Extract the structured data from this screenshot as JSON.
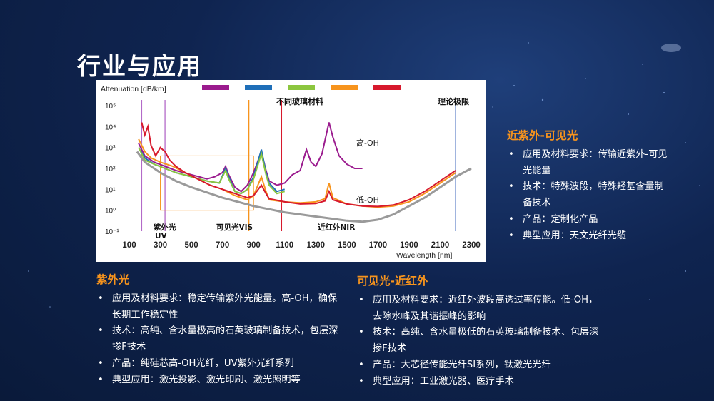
{
  "page": {
    "title": "行业与应用"
  },
  "chart_data": {
    "type": "line",
    "ylabel": "Attenuation [dB/km]",
    "xlabel": "Wavelength [nm]",
    "x_ticks": [
      100,
      300,
      500,
      700,
      900,
      1100,
      1300,
      1500,
      1700,
      1900,
      2100,
      2300
    ],
    "y_ticks": [
      "10⁻¹",
      "10⁰",
      "10¹",
      "10²",
      "10³",
      "10⁴",
      "10⁵"
    ],
    "y_scale": "log",
    "ylim_exp": [
      -1,
      5
    ],
    "xlim": [
      100,
      2300
    ],
    "legend_title": "不同玻璃材料",
    "legend_colors": [
      "#9b1b8e",
      "#1f6fb8",
      "#8cc63f",
      "#f7941d",
      "#d7192d"
    ],
    "limit_label": "理论极限",
    "limit_color": "#9a9a9a",
    "annotations": [
      "高-OH",
      "低-OH",
      "近红外NIR",
      "可见光VIS",
      "紫外光",
      "UV"
    ],
    "vlines": [
      {
        "x": 180,
        "color": "#b36ac8"
      },
      {
        "x": 330,
        "color": "#b36ac8"
      },
      {
        "x": 870,
        "color": "#f7941d"
      },
      {
        "x": 1080,
        "color": "#d7192d"
      },
      {
        "x": 2200,
        "color": "#1f4fb0"
      }
    ],
    "uv_box": [
      300,
      900
    ],
    "series": [
      {
        "color": "#9b1b8e",
        "label": "高-OH",
        "points": [
          [
            160,
            3.2
          ],
          [
            200,
            2.6
          ],
          [
            260,
            2.3
          ],
          [
            330,
            2.1
          ],
          [
            400,
            1.9
          ],
          [
            500,
            1.7
          ],
          [
            600,
            1.5
          ],
          [
            650,
            1.6
          ],
          [
            700,
            1.8
          ],
          [
            720,
            2.1
          ],
          [
            740,
            1.7
          ],
          [
            780,
            1.1
          ],
          [
            820,
            0.9
          ],
          [
            860,
            1.2
          ],
          [
            900,
            1.8
          ],
          [
            950,
            2.8
          ],
          [
            980,
            1.9
          ],
          [
            1000,
            1.4
          ],
          [
            1050,
            1.2
          ],
          [
            1100,
            1.3
          ],
          [
            1150,
            1.7
          ],
          [
            1200,
            1.9
          ],
          [
            1240,
            2.9
          ],
          [
            1270,
            2.3
          ],
          [
            1300,
            2.1
          ],
          [
            1340,
            2.7
          ],
          [
            1385,
            4.2
          ],
          [
            1410,
            3.5
          ],
          [
            1450,
            2.6
          ],
          [
            1500,
            2.2
          ],
          [
            1550,
            2.0
          ],
          [
            1600,
            2.0
          ]
        ]
      },
      {
        "color": "#1f6fb8",
        "points": [
          [
            160,
            3.0
          ],
          [
            200,
            2.5
          ],
          [
            260,
            2.2
          ],
          [
            330,
            2.0
          ],
          [
            400,
            1.8
          ],
          [
            500,
            1.6
          ],
          [
            600,
            1.4
          ],
          [
            680,
            1.3
          ],
          [
            720,
            2.0
          ],
          [
            740,
            1.6
          ],
          [
            780,
            0.9
          ],
          [
            820,
            0.8
          ],
          [
            860,
            1.0
          ],
          [
            900,
            1.6
          ],
          [
            950,
            2.9
          ],
          [
            980,
            1.8
          ],
          [
            1000,
            1.3
          ],
          [
            1050,
            0.9
          ],
          [
            1100,
            1.0
          ]
        ]
      },
      {
        "color": "#8cc63f",
        "points": [
          [
            160,
            3.0
          ],
          [
            200,
            2.4
          ],
          [
            260,
            2.2
          ],
          [
            330,
            2.0
          ],
          [
            400,
            1.8
          ],
          [
            500,
            1.6
          ],
          [
            600,
            1.4
          ],
          [
            680,
            1.3
          ],
          [
            720,
            1.9
          ],
          [
            740,
            1.5
          ],
          [
            780,
            0.9
          ],
          [
            820,
            0.8
          ],
          [
            860,
            1.0
          ],
          [
            900,
            1.5
          ],
          [
            950,
            2.7
          ],
          [
            980,
            1.7
          ],
          [
            1000,
            1.2
          ],
          [
            1050,
            0.8
          ],
          [
            1100,
            0.9
          ]
        ]
      },
      {
        "color": "#f7941d",
        "label": "低-OH",
        "points": [
          [
            160,
            3.4
          ],
          [
            200,
            2.8
          ],
          [
            240,
            2.5
          ],
          [
            300,
            2.3
          ],
          [
            380,
            2.1
          ],
          [
            460,
            1.8
          ],
          [
            540,
            1.5
          ],
          [
            620,
            1.2
          ],
          [
            700,
            1.0
          ],
          [
            780,
            0.7
          ],
          [
            860,
            0.5
          ],
          [
            900,
            0.7
          ],
          [
            950,
            1.6
          ],
          [
            980,
            0.9
          ],
          [
            1000,
            0.5
          ],
          [
            1100,
            0.4
          ],
          [
            1200,
            0.35
          ],
          [
            1300,
            0.4
          ],
          [
            1360,
            0.55
          ],
          [
            1385,
            1.3
          ],
          [
            1410,
            0.6
          ],
          [
            1500,
            0.3
          ],
          [
            1600,
            0.2
          ],
          [
            1700,
            0.15
          ],
          [
            1800,
            0.2
          ],
          [
            1900,
            0.4
          ],
          [
            2000,
            0.8
          ],
          [
            2100,
            1.3
          ],
          [
            2200,
            1.8
          ]
        ]
      },
      {
        "color": "#d7192d",
        "points": [
          [
            180,
            4.2
          ],
          [
            200,
            3.6
          ],
          [
            220,
            4.0
          ],
          [
            240,
            3.1
          ],
          [
            270,
            2.6
          ],
          [
            300,
            3.0
          ],
          [
            330,
            2.8
          ],
          [
            360,
            2.4
          ],
          [
            400,
            2.1
          ],
          [
            460,
            1.8
          ],
          [
            540,
            1.5
          ],
          [
            620,
            1.2
          ],
          [
            700,
            1.0
          ],
          [
            780,
            0.8
          ],
          [
            860,
            0.6
          ],
          [
            900,
            0.7
          ],
          [
            950,
            1.2
          ],
          [
            980,
            0.8
          ],
          [
            1000,
            0.55
          ],
          [
            1100,
            0.4
          ],
          [
            1200,
            0.3
          ],
          [
            1300,
            0.32
          ],
          [
            1360,
            0.45
          ],
          [
            1385,
            0.9
          ],
          [
            1410,
            0.5
          ],
          [
            1500,
            0.3
          ],
          [
            1600,
            0.2
          ],
          [
            1700,
            0.18
          ],
          [
            1800,
            0.25
          ],
          [
            1900,
            0.5
          ],
          [
            2000,
            0.9
          ],
          [
            2100,
            1.4
          ],
          [
            2200,
            1.9
          ]
        ]
      },
      {
        "color": "#9a9a9a",
        "label": "理论极限",
        "points": [
          [
            150,
            2.8
          ],
          [
            200,
            2.3
          ],
          [
            300,
            1.8
          ],
          [
            400,
            1.4
          ],
          [
            500,
            1.1
          ],
          [
            600,
            0.85
          ],
          [
            700,
            0.6
          ],
          [
            800,
            0.4
          ],
          [
            900,
            0.2
          ],
          [
            1000,
            0.05
          ],
          [
            1100,
            -0.1
          ],
          [
            1200,
            -0.2
          ],
          [
            1300,
            -0.3
          ],
          [
            1400,
            -0.4
          ],
          [
            1500,
            -0.5
          ],
          [
            1600,
            -0.55
          ],
          [
            1700,
            -0.45
          ],
          [
            1800,
            -0.2
          ],
          [
            1900,
            0.2
          ],
          [
            2000,
            0.6
          ],
          [
            2100,
            1.1
          ],
          [
            2200,
            1.6
          ],
          [
            2300,
            2.0
          ]
        ]
      }
    ]
  },
  "sections": {
    "nuv": {
      "title": "近紫外-可见光",
      "items": [
        "应用及材料要求：传输近紫外-可见光能量",
        "技术：特殊波段，特殊羟基含量制备技术",
        "产品：定制化产品",
        "典型应用：天文光纤光缆"
      ]
    },
    "uv": {
      "title": "紫外光",
      "items": [
        "应用及材料要求：稳定传输紫外光能量。高-OH，确保长期工作稳定性",
        "技术：高纯、含水量极高的石英玻璃制备技术，包层深掺F技术",
        "产品：纯硅芯高-OH光纤，UV紫外光纤系列",
        "典型应用：激光投影、激光印刷、激光照明等"
      ]
    },
    "visnir": {
      "title": "可见光-近红外",
      "items": [
        "应用及材料要求：近红外波段高透过率传能。低-OH，去除水峰及其谐振峰的影响",
        "技术：高纯、含水量极低的石英玻璃制备技术、包层深掺F技术",
        "产品：大芯径传能光纤SI系列，钛激光光纤",
        "典型应用：工业激光器、医疗手术"
      ]
    }
  }
}
